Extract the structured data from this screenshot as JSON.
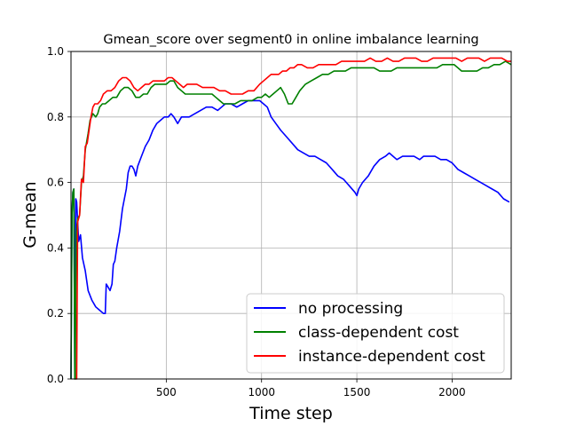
{
  "chart_data": {
    "type": "line",
    "title": "Gmean_score over segment0 in online imbalance learning",
    "xlabel": "Time step",
    "ylabel": "G-mean",
    "xlim": [
      0,
      2310
    ],
    "ylim": [
      0.0,
      1.0
    ],
    "xticks": [
      500,
      1000,
      1500,
      2000
    ],
    "xtick_labels": [
      "500",
      "1000",
      "1500",
      "2000"
    ],
    "yticks": [
      0.0,
      0.2,
      0.4,
      0.6,
      0.8,
      1.0
    ],
    "ytick_labels": [
      "0.0",
      "0.2",
      "0.4",
      "0.6",
      "0.8",
      "1.0"
    ],
    "grid": true,
    "legend_position": "lower-right",
    "series": [
      {
        "name": "no processing",
        "color": "#0000ff",
        "points": [
          [
            0,
            0.0
          ],
          [
            5,
            0.5
          ],
          [
            10,
            0.57
          ],
          [
            15,
            0.58
          ],
          [
            20,
            0.0
          ],
          [
            25,
            0.55
          ],
          [
            30,
            0.54
          ],
          [
            40,
            0.42
          ],
          [
            50,
            0.44
          ],
          [
            60,
            0.37
          ],
          [
            75,
            0.33
          ],
          [
            90,
            0.27
          ],
          [
            110,
            0.24
          ],
          [
            130,
            0.22
          ],
          [
            150,
            0.21
          ],
          [
            170,
            0.2
          ],
          [
            180,
            0.2
          ],
          [
            185,
            0.29
          ],
          [
            195,
            0.28
          ],
          [
            205,
            0.27
          ],
          [
            215,
            0.29
          ],
          [
            222,
            0.35
          ],
          [
            230,
            0.36
          ],
          [
            240,
            0.4
          ],
          [
            255,
            0.45
          ],
          [
            270,
            0.52
          ],
          [
            290,
            0.58
          ],
          [
            300,
            0.63
          ],
          [
            310,
            0.65
          ],
          [
            320,
            0.65
          ],
          [
            330,
            0.64
          ],
          [
            340,
            0.62
          ],
          [
            350,
            0.65
          ],
          [
            370,
            0.68
          ],
          [
            390,
            0.71
          ],
          [
            410,
            0.73
          ],
          [
            430,
            0.76
          ],
          [
            450,
            0.78
          ],
          [
            470,
            0.79
          ],
          [
            490,
            0.8
          ],
          [
            510,
            0.8
          ],
          [
            525,
            0.81
          ],
          [
            540,
            0.8
          ],
          [
            560,
            0.78
          ],
          [
            580,
            0.8
          ],
          [
            600,
            0.8
          ],
          [
            620,
            0.8
          ],
          [
            650,
            0.81
          ],
          [
            680,
            0.82
          ],
          [
            710,
            0.83
          ],
          [
            740,
            0.83
          ],
          [
            770,
            0.82
          ],
          [
            790,
            0.83
          ],
          [
            810,
            0.84
          ],
          [
            840,
            0.84
          ],
          [
            870,
            0.83
          ],
          [
            900,
            0.84
          ],
          [
            930,
            0.85
          ],
          [
            960,
            0.85
          ],
          [
            990,
            0.85
          ],
          [
            1010,
            0.84
          ],
          [
            1030,
            0.83
          ],
          [
            1050,
            0.8
          ],
          [
            1075,
            0.78
          ],
          [
            1100,
            0.76
          ],
          [
            1130,
            0.74
          ],
          [
            1160,
            0.72
          ],
          [
            1190,
            0.7
          ],
          [
            1220,
            0.69
          ],
          [
            1250,
            0.68
          ],
          [
            1280,
            0.68
          ],
          [
            1310,
            0.67
          ],
          [
            1340,
            0.66
          ],
          [
            1370,
            0.64
          ],
          [
            1400,
            0.62
          ],
          [
            1430,
            0.61
          ],
          [
            1460,
            0.59
          ],
          [
            1490,
            0.57
          ],
          [
            1500,
            0.56
          ],
          [
            1510,
            0.58
          ],
          [
            1530,
            0.6
          ],
          [
            1560,
            0.62
          ],
          [
            1590,
            0.65
          ],
          [
            1620,
            0.67
          ],
          [
            1650,
            0.68
          ],
          [
            1670,
            0.69
          ],
          [
            1690,
            0.68
          ],
          [
            1710,
            0.67
          ],
          [
            1740,
            0.68
          ],
          [
            1770,
            0.68
          ],
          [
            1800,
            0.68
          ],
          [
            1830,
            0.67
          ],
          [
            1850,
            0.68
          ],
          [
            1880,
            0.68
          ],
          [
            1910,
            0.68
          ],
          [
            1940,
            0.67
          ],
          [
            1970,
            0.67
          ],
          [
            2000,
            0.66
          ],
          [
            2030,
            0.64
          ],
          [
            2060,
            0.63
          ],
          [
            2090,
            0.62
          ],
          [
            2120,
            0.61
          ],
          [
            2150,
            0.6
          ],
          [
            2180,
            0.59
          ],
          [
            2210,
            0.58
          ],
          [
            2240,
            0.57
          ],
          [
            2270,
            0.55
          ],
          [
            2300,
            0.54
          ]
        ]
      },
      {
        "name": "class-dependent cost",
        "color": "#008000",
        "points": [
          [
            0,
            0.0
          ],
          [
            5,
            0.5
          ],
          [
            10,
            0.57
          ],
          [
            15,
            0.58
          ],
          [
            20,
            0.0
          ],
          [
            22,
            0.0
          ],
          [
            28,
            0.45
          ],
          [
            35,
            0.49
          ],
          [
            45,
            0.5
          ],
          [
            55,
            0.6
          ],
          [
            65,
            0.62
          ],
          [
            75,
            0.7
          ],
          [
            90,
            0.75
          ],
          [
            100,
            0.79
          ],
          [
            115,
            0.81
          ],
          [
            130,
            0.8
          ],
          [
            140,
            0.81
          ],
          [
            150,
            0.83
          ],
          [
            165,
            0.84
          ],
          [
            180,
            0.84
          ],
          [
            200,
            0.85
          ],
          [
            220,
            0.86
          ],
          [
            240,
            0.86
          ],
          [
            260,
            0.88
          ],
          [
            280,
            0.89
          ],
          [
            300,
            0.89
          ],
          [
            320,
            0.88
          ],
          [
            340,
            0.86
          ],
          [
            360,
            0.86
          ],
          [
            380,
            0.87
          ],
          [
            400,
            0.87
          ],
          [
            420,
            0.89
          ],
          [
            440,
            0.9
          ],
          [
            460,
            0.9
          ],
          [
            480,
            0.9
          ],
          [
            500,
            0.9
          ],
          [
            520,
            0.91
          ],
          [
            540,
            0.91
          ],
          [
            560,
            0.89
          ],
          [
            580,
            0.88
          ],
          [
            600,
            0.87
          ],
          [
            620,
            0.87
          ],
          [
            650,
            0.87
          ],
          [
            680,
            0.87
          ],
          [
            710,
            0.87
          ],
          [
            740,
            0.87
          ],
          [
            760,
            0.86
          ],
          [
            780,
            0.85
          ],
          [
            800,
            0.84
          ],
          [
            830,
            0.84
          ],
          [
            860,
            0.84
          ],
          [
            890,
            0.85
          ],
          [
            920,
            0.85
          ],
          [
            950,
            0.85
          ],
          [
            980,
            0.86
          ],
          [
            1000,
            0.86
          ],
          [
            1020,
            0.87
          ],
          [
            1040,
            0.86
          ],
          [
            1060,
            0.87
          ],
          [
            1080,
            0.88
          ],
          [
            1100,
            0.89
          ],
          [
            1120,
            0.87
          ],
          [
            1140,
            0.84
          ],
          [
            1160,
            0.84
          ],
          [
            1180,
            0.86
          ],
          [
            1200,
            0.88
          ],
          [
            1230,
            0.9
          ],
          [
            1260,
            0.91
          ],
          [
            1290,
            0.92
          ],
          [
            1320,
            0.93
          ],
          [
            1350,
            0.93
          ],
          [
            1380,
            0.94
          ],
          [
            1410,
            0.94
          ],
          [
            1440,
            0.94
          ],
          [
            1470,
            0.95
          ],
          [
            1500,
            0.95
          ],
          [
            1530,
            0.95
          ],
          [
            1560,
            0.95
          ],
          [
            1590,
            0.95
          ],
          [
            1620,
            0.94
          ],
          [
            1650,
            0.94
          ],
          [
            1680,
            0.94
          ],
          [
            1710,
            0.95
          ],
          [
            1740,
            0.95
          ],
          [
            1770,
            0.95
          ],
          [
            1800,
            0.95
          ],
          [
            1830,
            0.95
          ],
          [
            1860,
            0.95
          ],
          [
            1890,
            0.95
          ],
          [
            1920,
            0.95
          ],
          [
            1950,
            0.96
          ],
          [
            1980,
            0.96
          ],
          [
            2010,
            0.96
          ],
          [
            2030,
            0.95
          ],
          [
            2050,
            0.94
          ],
          [
            2070,
            0.94
          ],
          [
            2100,
            0.94
          ],
          [
            2130,
            0.94
          ],
          [
            2160,
            0.95
          ],
          [
            2190,
            0.95
          ],
          [
            2220,
            0.96
          ],
          [
            2250,
            0.96
          ],
          [
            2280,
            0.97
          ],
          [
            2310,
            0.96
          ]
        ]
      },
      {
        "name": "instance-dependent cost",
        "color": "#ff0000",
        "points": [
          [
            25,
            0.0
          ],
          [
            30,
            0.0
          ],
          [
            35,
            0.48
          ],
          [
            45,
            0.5
          ],
          [
            55,
            0.61
          ],
          [
            65,
            0.6
          ],
          [
            75,
            0.71
          ],
          [
            85,
            0.72
          ],
          [
            95,
            0.76
          ],
          [
            105,
            0.8
          ],
          [
            115,
            0.83
          ],
          [
            125,
            0.84
          ],
          [
            140,
            0.84
          ],
          [
            155,
            0.85
          ],
          [
            170,
            0.87
          ],
          [
            190,
            0.88
          ],
          [
            210,
            0.88
          ],
          [
            230,
            0.89
          ],
          [
            250,
            0.91
          ],
          [
            270,
            0.92
          ],
          [
            290,
            0.92
          ],
          [
            310,
            0.91
          ],
          [
            330,
            0.89
          ],
          [
            350,
            0.88
          ],
          [
            370,
            0.89
          ],
          [
            390,
            0.9
          ],
          [
            410,
            0.9
          ],
          [
            430,
            0.91
          ],
          [
            450,
            0.91
          ],
          [
            470,
            0.91
          ],
          [
            490,
            0.91
          ],
          [
            510,
            0.92
          ],
          [
            530,
            0.92
          ],
          [
            550,
            0.91
          ],
          [
            570,
            0.9
          ],
          [
            590,
            0.89
          ],
          [
            610,
            0.9
          ],
          [
            630,
            0.9
          ],
          [
            660,
            0.9
          ],
          [
            690,
            0.89
          ],
          [
            720,
            0.89
          ],
          [
            750,
            0.89
          ],
          [
            780,
            0.88
          ],
          [
            810,
            0.88
          ],
          [
            840,
            0.87
          ],
          [
            870,
            0.87
          ],
          [
            900,
            0.87
          ],
          [
            930,
            0.88
          ],
          [
            960,
            0.88
          ],
          [
            990,
            0.9
          ],
          [
            1010,
            0.91
          ],
          [
            1030,
            0.92
          ],
          [
            1050,
            0.93
          ],
          [
            1070,
            0.93
          ],
          [
            1090,
            0.93
          ],
          [
            1110,
            0.94
          ],
          [
            1130,
            0.94
          ],
          [
            1150,
            0.95
          ],
          [
            1170,
            0.95
          ],
          [
            1190,
            0.96
          ],
          [
            1210,
            0.96
          ],
          [
            1240,
            0.95
          ],
          [
            1270,
            0.95
          ],
          [
            1300,
            0.96
          ],
          [
            1330,
            0.96
          ],
          [
            1360,
            0.96
          ],
          [
            1390,
            0.96
          ],
          [
            1420,
            0.97
          ],
          [
            1450,
            0.97
          ],
          [
            1480,
            0.97
          ],
          [
            1510,
            0.97
          ],
          [
            1540,
            0.97
          ],
          [
            1570,
            0.98
          ],
          [
            1600,
            0.97
          ],
          [
            1630,
            0.97
          ],
          [
            1660,
            0.98
          ],
          [
            1690,
            0.97
          ],
          [
            1720,
            0.97
          ],
          [
            1750,
            0.98
          ],
          [
            1780,
            0.98
          ],
          [
            1810,
            0.98
          ],
          [
            1840,
            0.97
          ],
          [
            1870,
            0.97
          ],
          [
            1900,
            0.98
          ],
          [
            1930,
            0.98
          ],
          [
            1960,
            0.98
          ],
          [
            1990,
            0.98
          ],
          [
            2020,
            0.98
          ],
          [
            2050,
            0.97
          ],
          [
            2080,
            0.98
          ],
          [
            2110,
            0.98
          ],
          [
            2140,
            0.98
          ],
          [
            2170,
            0.97
          ],
          [
            2200,
            0.98
          ],
          [
            2230,
            0.98
          ],
          [
            2260,
            0.98
          ],
          [
            2290,
            0.97
          ],
          [
            2310,
            0.97
          ]
        ]
      }
    ]
  }
}
